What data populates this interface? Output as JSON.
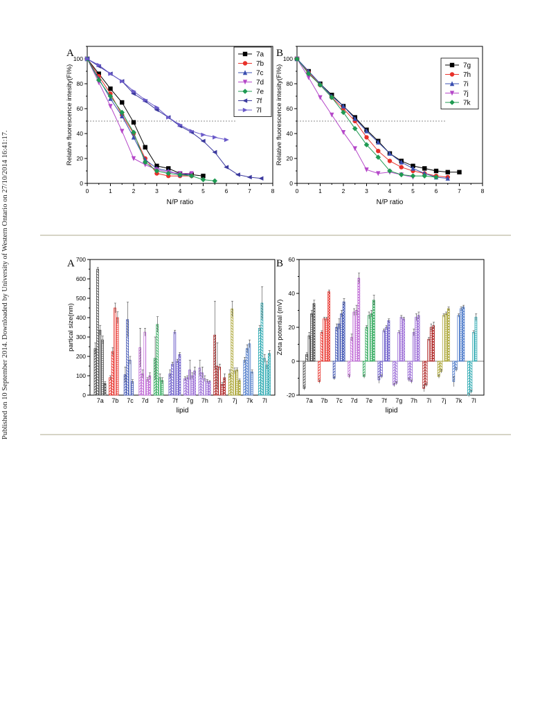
{
  "side_note": "Published on 10 September 2014. Downloaded by University of Western Ontario on 27/10/2014 16:41:17.",
  "colors": {
    "7a": "#000000",
    "7b": "#e8312a",
    "7c": "#3a4fb0",
    "7d": "#b548c9",
    "7e": "#1f9a52",
    "7f": "#3c3a9e",
    "7g": "#000000",
    "7h": "#e8312a",
    "7i": "#3a4fb0",
    "7j": "#b548c9",
    "7k": "#1f9a52",
    "7l": "#6a5ac9",
    "bars": {
      "7a": "#444444",
      "7b": "#e8312a",
      "7c": "#3a4fb0",
      "7d": "#c06bd6",
      "7e": "#2ea85a",
      "7f": "#6a5ac9",
      "7g": "#9a6bd6",
      "7h": "#9a6bd6",
      "7i": "#b02a2a",
      "7j": "#a9a330",
      "7k": "#4a78c9",
      "7l": "#2aa8b0"
    }
  },
  "chart_data": [
    {
      "type": "line",
      "panel_label": "A",
      "xlabel": "N/P ratio",
      "ylabel": "Relative fluorescence intesity(FI%)",
      "xlim": [
        0,
        8
      ],
      "ylim": [
        0,
        110
      ],
      "xticks": [
        0,
        1,
        2,
        3,
        4,
        5,
        6,
        7,
        8
      ],
      "yticks": [
        0,
        20,
        40,
        60,
        80,
        100
      ],
      "reference_line": 50,
      "legend_position": "top-right",
      "series": [
        {
          "name": "7a",
          "marker": "square",
          "x": [
            0,
            0.5,
            1,
            1.5,
            2,
            2.5,
            3,
            3.5,
            4,
            4.5,
            5
          ],
          "y": [
            100,
            88,
            76,
            65,
            49,
            29,
            14,
            12,
            8,
            7,
            6
          ]
        },
        {
          "name": "7b",
          "marker": "circle",
          "x": [
            0,
            0.5,
            1,
            1.5,
            2,
            2.5,
            3,
            3.5,
            4,
            4.5
          ],
          "y": [
            100,
            86,
            72,
            55,
            40,
            20,
            8,
            6,
            6,
            6
          ]
        },
        {
          "name": "7c",
          "marker": "triangle-up",
          "x": [
            0,
            0.5,
            1,
            1.5,
            2,
            2.5,
            3,
            3.5,
            4,
            4.5
          ],
          "y": [
            100,
            84,
            68,
            54,
            37,
            19,
            12,
            10,
            7,
            7
          ]
        },
        {
          "name": "7d",
          "marker": "triangle-down",
          "x": [
            0,
            0.5,
            1,
            1.5,
            2,
            2.5,
            3,
            3.5,
            4,
            4.5
          ],
          "y": [
            100,
            81,
            62,
            42,
            20,
            15,
            11,
            9,
            8,
            8
          ]
        },
        {
          "name": "7e",
          "marker": "diamond",
          "x": [
            0,
            0.5,
            1,
            1.5,
            2,
            2.5,
            3,
            3.5,
            4,
            4.5,
            5,
            5.5
          ],
          "y": [
            100,
            83,
            70,
            57,
            41,
            17,
            10,
            8,
            7,
            6,
            3,
            2
          ]
        },
        {
          "name": "7f",
          "marker": "triangle-left",
          "x": [
            0,
            0.5,
            1,
            1.5,
            2,
            2.5,
            3,
            3.5,
            4,
            4.5,
            5,
            5.5,
            6,
            6.5,
            7,
            7.5
          ],
          "y": [
            100,
            94,
            88,
            82,
            72,
            66,
            59,
            53,
            46,
            41,
            34,
            25,
            13,
            7,
            5,
            4
          ]
        },
        {
          "name": "7l",
          "marker": "triangle-right",
          "x": [
            0,
            0.5,
            1,
            1.5,
            2,
            2.5,
            3,
            3.5,
            4,
            4.5,
            5,
            5.5,
            6
          ],
          "y": [
            100,
            95,
            88,
            82,
            74,
            67,
            61,
            53,
            47,
            42,
            39,
            37,
            35
          ]
        }
      ]
    },
    {
      "type": "line",
      "panel_label": "B",
      "xlabel": "N/P ratio",
      "ylabel": "Relative fluorescence intesity(FI%)",
      "xlim": [
        0,
        8
      ],
      "ylim": [
        0,
        110
      ],
      "xticks": [
        0,
        1,
        2,
        3,
        4,
        5,
        6,
        7,
        8
      ],
      "yticks": [
        0,
        20,
        40,
        60,
        80,
        100
      ],
      "reference_line": 50,
      "legend_position": "top-right",
      "series": [
        {
          "name": "7g",
          "marker": "square",
          "x": [
            0,
            0.5,
            1,
            1.5,
            2,
            2.5,
            3,
            3.5,
            4,
            4.5,
            5,
            5.5,
            6,
            6.5,
            7
          ],
          "y": [
            100,
            90,
            80,
            71,
            62,
            53,
            43,
            34,
            24,
            18,
            14,
            12,
            10,
            9,
            9
          ]
        },
        {
          "name": "7h",
          "marker": "circle",
          "x": [
            0,
            0.5,
            1,
            1.5,
            2,
            2.5,
            3,
            3.5,
            4,
            4.5,
            5,
            5.5,
            6,
            6.5
          ],
          "y": [
            100,
            89,
            79,
            69,
            60,
            50,
            37,
            26,
            18,
            13,
            10,
            8,
            6,
            5
          ]
        },
        {
          "name": "7i",
          "marker": "triangle-up",
          "x": [
            0,
            0.5,
            1,
            1.5,
            2,
            2.5,
            3,
            3.5,
            4,
            4.5,
            5,
            5.5,
            6,
            6.5
          ],
          "y": [
            100,
            90,
            80,
            70,
            62,
            52,
            42,
            33,
            24,
            17,
            12,
            8,
            5,
            4
          ]
        },
        {
          "name": "7j",
          "marker": "triangle-down",
          "x": [
            0,
            0.5,
            1,
            1.5,
            2,
            2.5,
            3,
            3.5,
            4,
            4.5,
            5
          ],
          "y": [
            100,
            85,
            69,
            55,
            41,
            28,
            11,
            8,
            9,
            7,
            5
          ]
        },
        {
          "name": "7k",
          "marker": "diamond",
          "x": [
            0,
            0.5,
            1,
            1.5,
            2,
            2.5,
            3,
            3.5,
            4,
            4.5,
            5,
            5.5,
            6
          ],
          "y": [
            100,
            88,
            79,
            69,
            57,
            44,
            31,
            21,
            10,
            7,
            6,
            6,
            5
          ]
        }
      ]
    },
    {
      "type": "bar",
      "panel_label": "A",
      "xlabel": "lipid",
      "ylabel": "partical size(nm)",
      "ylim": [
        0,
        700
      ],
      "yticks": [
        0,
        100,
        200,
        300,
        400,
        500,
        600,
        700
      ],
      "categories": [
        "7a",
        "7b",
        "7c",
        "7d",
        "7e",
        "7f",
        "7g",
        "7h",
        "7i",
        "7j",
        "7k",
        "7l"
      ],
      "values": [
        [
          240,
          650,
          335,
          285,
          60
        ],
        [
          90,
          225,
          450,
          400,
          0
        ],
        [
          105,
          390,
          180,
          70,
          0
        ],
        [
          245,
          110,
          325,
          80,
          100
        ],
        [
          190,
          365,
          90,
          75,
          0
        ],
        [
          110,
          160,
          325,
          175,
          210
        ],
        [
          85,
          90,
          130,
          100,
          125
        ],
        [
          140,
          115,
          85,
          72,
          70
        ],
        [
          310,
          150,
          145,
          55,
          90
        ],
        [
          110,
          445,
          125,
          130,
          75
        ],
        [
          180,
          240,
          265,
          120,
          0
        ],
        [
          345,
          475,
          190,
          155,
          215
        ]
      ],
      "errors": [
        [
          30,
          10,
          25,
          20,
          10
        ],
        [
          10,
          20,
          25,
          30,
          0
        ],
        [
          40,
          90,
          20,
          10,
          0
        ],
        [
          100,
          20,
          20,
          10,
          15
        ],
        [
          110,
          40,
          20,
          15,
          0
        ],
        [
          20,
          10,
          10,
          10,
          10
        ],
        [
          10,
          10,
          50,
          15,
          20
        ],
        [
          40,
          30,
          15,
          8,
          5
        ],
        [
          175,
          120,
          15,
          10,
          20
        ],
        [
          20,
          40,
          15,
          10,
          8
        ],
        [
          15,
          20,
          20,
          10,
          0
        ],
        [
          15,
          85,
          20,
          20,
          15
        ]
      ]
    },
    {
      "type": "bar",
      "panel_label": "B",
      "xlabel": "lipid",
      "ylabel": "Zeta potential  (mV)",
      "ylim": [
        -20,
        60
      ],
      "yticks": [
        -20,
        0,
        20,
        40,
        60
      ],
      "categories": [
        "7a",
        "7b",
        "7c",
        "7d",
        "7e",
        "7f",
        "7g",
        "7h",
        "7i",
        "7j",
        "7k",
        "7l"
      ],
      "values": [
        [
          -16,
          4,
          15,
          28,
          34
        ],
        [
          -12,
          17,
          25,
          25,
          41
        ],
        [
          -10,
          20,
          22,
          28,
          35
        ],
        [
          -9,
          14,
          29,
          30,
          49
        ],
        [
          -9,
          20,
          27,
          28,
          36
        ],
        [
          -11,
          -9,
          18,
          20,
          24
        ],
        [
          -14,
          -13,
          17,
          26,
          25
        ],
        [
          -11,
          -12,
          17,
          26,
          27
        ],
        [
          -16,
          -14,
          13,
          20,
          21
        ],
        [
          -9,
          -6,
          27,
          28,
          31
        ],
        [
          -12,
          -5,
          27,
          31,
          32
        ],
        [
          -20,
          -18,
          17,
          26,
          0
        ]
      ],
      "errors": [
        [
          1,
          1,
          2,
          2,
          2
        ],
        [
          1,
          1,
          1,
          1,
          1
        ],
        [
          1,
          2,
          3,
          2,
          2
        ],
        [
          1,
          2,
          2,
          3,
          3
        ],
        [
          1,
          1,
          2,
          2,
          3
        ],
        [
          2,
          1,
          1,
          1,
          1
        ],
        [
          1,
          1,
          1,
          1,
          1
        ],
        [
          1,
          1,
          2,
          2,
          2
        ],
        [
          2,
          1,
          1,
          2,
          2
        ],
        [
          1,
          1,
          1,
          1,
          1
        ],
        [
          3,
          1,
          1,
          1,
          1
        ],
        [
          1,
          1,
          1,
          2,
          0
        ]
      ]
    }
  ]
}
